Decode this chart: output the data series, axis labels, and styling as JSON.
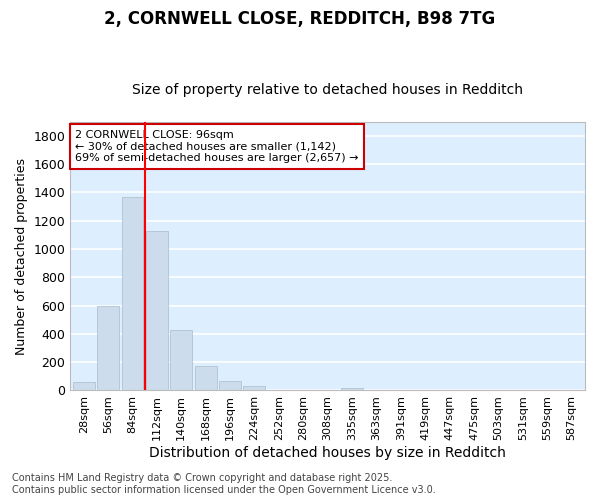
{
  "title_line1": "2, CORNWELL CLOSE, REDDITCH, B98 7TG",
  "title_line2": "Size of property relative to detached houses in Redditch",
  "xlabel": "Distribution of detached houses by size in Redditch",
  "ylabel": "Number of detached properties",
  "bar_color": "#ccdcec",
  "bar_edgecolor": "#aabccc",
  "bg_color": "#ddeeff",
  "grid_color": "#ffffff",
  "categories": [
    "28sqm",
    "56sqm",
    "84sqm",
    "112sqm",
    "140sqm",
    "168sqm",
    "196sqm",
    "224sqm",
    "252sqm",
    "280sqm",
    "308sqm",
    "335sqm",
    "363sqm",
    "391sqm",
    "419sqm",
    "447sqm",
    "475sqm",
    "503sqm",
    "531sqm",
    "559sqm",
    "587sqm"
  ],
  "values": [
    60,
    600,
    1370,
    1130,
    430,
    175,
    65,
    35,
    0,
    0,
    0,
    15,
    0,
    0,
    0,
    0,
    0,
    0,
    0,
    0,
    0
  ],
  "ylim": [
    0,
    1900
  ],
  "yticks": [
    0,
    200,
    400,
    600,
    800,
    1000,
    1200,
    1400,
    1600,
    1800
  ],
  "red_line_x": 2.5,
  "annotation_line1": "2 CORNWELL CLOSE: 96sqm",
  "annotation_line2": "← 30% of detached houses are smaller (1,142)",
  "annotation_line3": "69% of semi-detached houses are larger (2,657) →",
  "annotation_box_color": "#ffffff",
  "annotation_box_edgecolor": "#cc0000",
  "footer_line1": "Contains HM Land Registry data © Crown copyright and database right 2025.",
  "footer_line2": "Contains public sector information licensed under the Open Government Licence v3.0.",
  "fig_bg_color": "#ffffff",
  "title_fontsize": 12,
  "subtitle_fontsize": 10,
  "xlabel_fontsize": 10,
  "ylabel_fontsize": 9,
  "tick_fontsize": 8,
  "annotation_fontsize": 8,
  "footer_fontsize": 7
}
